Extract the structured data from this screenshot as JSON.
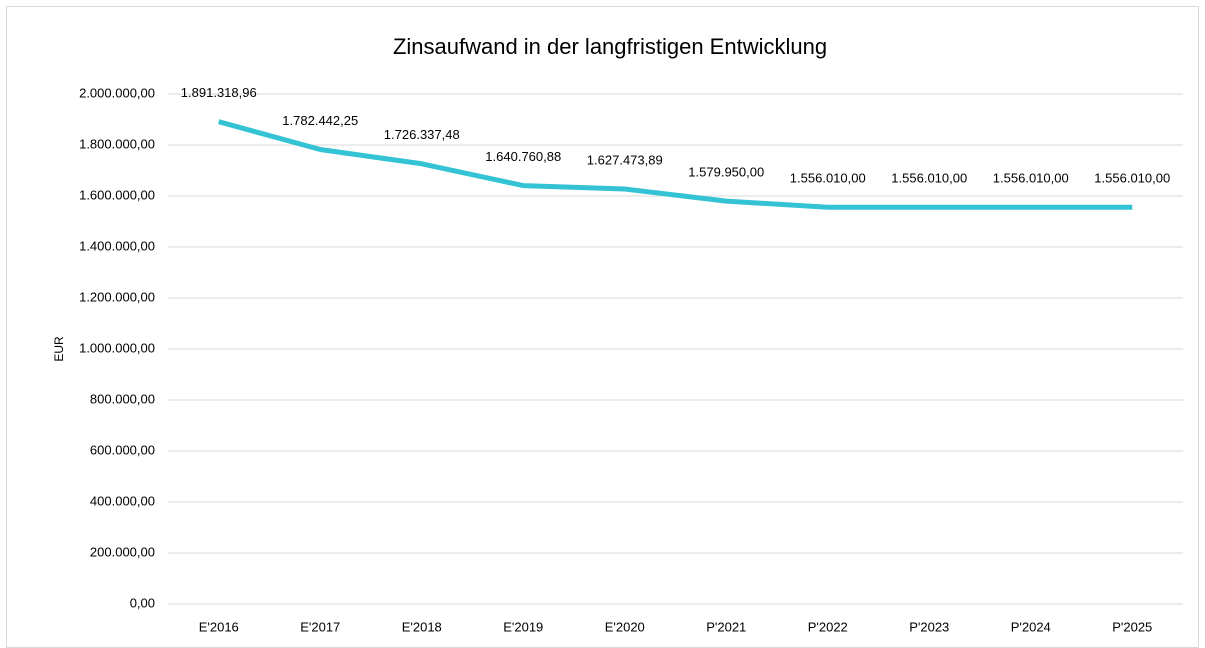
{
  "chart_data": {
    "type": "line",
    "title": "Zinsaufwand in der langfristigen Entwicklung",
    "y_label": "EUR",
    "categories": [
      "E'2016",
      "E'2017",
      "E'2018",
      "E'2019",
      "E'2020",
      "P'2021",
      "P'2022",
      "P'2023",
      "P'2024",
      "P'2025"
    ],
    "series": [
      {
        "name": "Zinsaufwand",
        "color": "#33c3d4",
        "values": [
          1891318.96,
          1782442.25,
          1726337.48,
          1640760.88,
          1627473.89,
          1579950.0,
          1556010.0,
          1556010.0,
          1556010.0,
          1556010.0
        ],
        "value_labels": [
          "1.891.318,96",
          "1.782.442,25",
          "1.726.337,48",
          "1.640.760,88",
          "1.627.473,89",
          "1.579.950,00",
          "1.556.010,00",
          "1.556.010,00",
          "1.556.010,00",
          "1.556.010,00"
        ]
      }
    ],
    "ylim": [
      0,
      2000000
    ],
    "yticks": [
      {
        "value": 0,
        "label": "0,00"
      },
      {
        "value": 200000,
        "label": "200.000,00"
      },
      {
        "value": 400000,
        "label": "400.000,00"
      },
      {
        "value": 600000,
        "label": "600.000,00"
      },
      {
        "value": 800000,
        "label": "800.000,00"
      },
      {
        "value": 1000000,
        "label": "1.000.000,00"
      },
      {
        "value": 1200000,
        "label": "1.200.000,00"
      },
      {
        "value": 1400000,
        "label": "1.400.000,00"
      },
      {
        "value": 1600000,
        "label": "1.600.000,00"
      },
      {
        "value": 1800000,
        "label": "1.800.000,00"
      },
      {
        "value": 2000000,
        "label": "2.000.000,00"
      }
    ],
    "grid": true
  }
}
